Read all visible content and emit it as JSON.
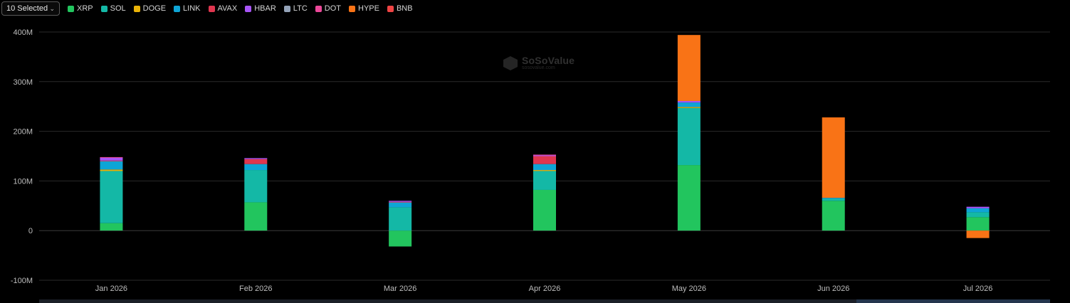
{
  "selector": {
    "label": "10 Selected",
    "chevron_icon": "chevron-down-icon"
  },
  "legend": [
    {
      "name": "XRP",
      "color": "#22c55e"
    },
    {
      "name": "SOL",
      "color": "#14b8a6"
    },
    {
      "name": "DOGE",
      "color": "#eab308"
    },
    {
      "name": "LINK",
      "color": "#0ea5d6"
    },
    {
      "name": "AVAX",
      "color": "#e0364f"
    },
    {
      "name": "HBAR",
      "color": "#a855f7"
    },
    {
      "name": "LTC",
      "color": "#94a3b8"
    },
    {
      "name": "DOT",
      "color": "#ec4899"
    },
    {
      "name": "HYPE",
      "color": "#f97316"
    },
    {
      "name": "BNB",
      "color": "#ef4444"
    }
  ],
  "watermark": {
    "title": "SoSoValue",
    "subtitle": "sosovalue.com"
  },
  "chart_data": {
    "type": "bar",
    "stacked": true,
    "categories": [
      "Jan 2026",
      "Feb 2026",
      "Mar 2026",
      "Apr 2026",
      "May 2026",
      "Jun 2026",
      "Jul 2026"
    ],
    "ylim": [
      -100,
      400
    ],
    "yticks": [
      400,
      300,
      200,
      100,
      0,
      -100
    ],
    "ytick_labels": [
      "400M",
      "300M",
      "200M",
      "100M",
      "0",
      "-100M"
    ],
    "grid": true,
    "legend_position": "top-left",
    "series": [
      {
        "name": "XRP",
        "color": "#22c55e",
        "values": [
          15,
          57,
          -32,
          82,
          132,
          60,
          27
        ]
      },
      {
        "name": "SOL",
        "color": "#14b8a6",
        "values": [
          105,
          65,
          47,
          38,
          115,
          4,
          10
        ]
      },
      {
        "name": "DOGE",
        "color": "#eab308",
        "values": [
          3,
          0,
          0,
          2,
          2,
          0,
          0
        ]
      },
      {
        "name": "LINK",
        "color": "#0ea5d6",
        "values": [
          17,
          12,
          10,
          12,
          9,
          2,
          8
        ]
      },
      {
        "name": "AVAX",
        "color": "#e0364f",
        "values": [
          1,
          10,
          1,
          16,
          0,
          0,
          0
        ]
      },
      {
        "name": "HBAR",
        "color": "#a855f7",
        "values": [
          6,
          2,
          2,
          2,
          3,
          0,
          3
        ]
      },
      {
        "name": "LTC",
        "color": "#94a3b8",
        "values": [
          0,
          0,
          0,
          0,
          0,
          0,
          0
        ]
      },
      {
        "name": "DOT",
        "color": "#ec4899",
        "values": [
          1,
          0,
          0,
          1,
          0,
          0,
          0
        ]
      },
      {
        "name": "HYPE",
        "color": "#f97316",
        "values": [
          0,
          0,
          0,
          0,
          133,
          162,
          -15
        ]
      },
      {
        "name": "BNB",
        "color": "#ef4444",
        "values": [
          0,
          0,
          0,
          0,
          0,
          0,
          0
        ]
      }
    ]
  }
}
